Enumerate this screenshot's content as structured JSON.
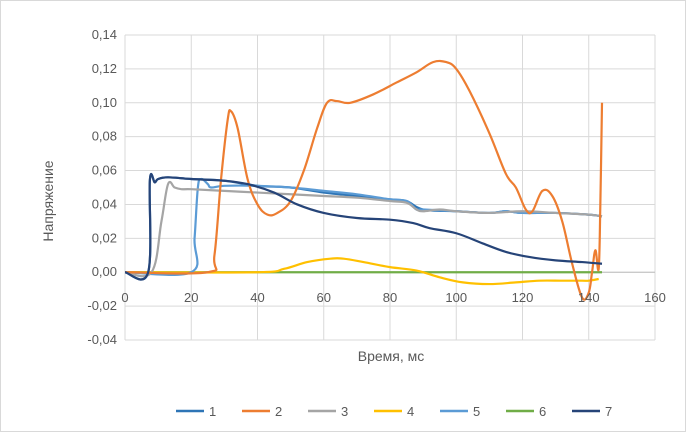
{
  "chart_data": {
    "type": "line",
    "xlabel": "Время, мс",
    "ylabel": "Напряжение",
    "xlim": [
      0,
      160
    ],
    "ylim": [
      -0.04,
      0.14
    ],
    "xticks": [
      0,
      20,
      40,
      60,
      80,
      100,
      120,
      140,
      160
    ],
    "yticks": [
      -0.04,
      -0.02,
      0.0,
      0.02,
      0.04,
      0.06,
      0.08,
      0.1,
      0.12,
      0.14
    ],
    "ytick_labels": [
      "-0,04",
      "-0,02",
      "0,00",
      "0,02",
      "0,04",
      "0,06",
      "0,08",
      "0,10",
      "0,12",
      "0,14"
    ],
    "xtick_labels": [
      "0",
      "20",
      "40",
      "60",
      "80",
      "100",
      "120",
      "140",
      "160"
    ],
    "grid": true,
    "legend_position": "bottom",
    "series": [
      {
        "name": "1",
        "color": "#2e75b6",
        "points": [
          [
            0,
            0
          ],
          [
            7,
            0
          ],
          [
            7.5,
            0.054
          ],
          [
            9,
            0.053
          ],
          [
            10,
            0.055
          ],
          [
            13,
            0.056
          ],
          [
            20,
            0.055
          ],
          [
            30,
            0.054
          ],
          [
            40,
            0.051
          ],
          [
            50,
            0.05
          ],
          [
            60,
            0.047
          ],
          [
            70,
            0.045
          ],
          [
            80,
            0.043
          ],
          [
            85,
            0.042
          ],
          [
            90,
            0.037
          ],
          [
            100,
            0.036
          ],
          [
            110,
            0.035
          ],
          [
            115,
            0.036
          ],
          [
            120,
            0.035
          ],
          [
            130,
            0.035
          ],
          [
            140,
            0.034
          ],
          [
            144,
            0.033
          ]
        ]
      },
      {
        "name": "2",
        "color": "#ed7d31",
        "points": [
          [
            0,
            0
          ],
          [
            25,
            0
          ],
          [
            27,
            0.01
          ],
          [
            29,
            0.055
          ],
          [
            31,
            0.09
          ],
          [
            32,
            0.095
          ],
          [
            34,
            0.085
          ],
          [
            37,
            0.055
          ],
          [
            40,
            0.04
          ],
          [
            43,
            0.034
          ],
          [
            46,
            0.035
          ],
          [
            50,
            0.042
          ],
          [
            54,
            0.06
          ],
          [
            58,
            0.085
          ],
          [
            61,
            0.1
          ],
          [
            64,
            0.101
          ],
          [
            68,
            0.1
          ],
          [
            75,
            0.105
          ],
          [
            82,
            0.112
          ],
          [
            88,
            0.118
          ],
          [
            93,
            0.124
          ],
          [
            97,
            0.124
          ],
          [
            100,
            0.12
          ],
          [
            104,
            0.107
          ],
          [
            110,
            0.082
          ],
          [
            115,
            0.058
          ],
          [
            118,
            0.05
          ],
          [
            121,
            0.037
          ],
          [
            123,
            0.036
          ],
          [
            126,
            0.048
          ],
          [
            129,
            0.045
          ],
          [
            132,
            0.03
          ],
          [
            135,
            0.005
          ],
          [
            138,
            -0.015
          ],
          [
            140,
            -0.012
          ],
          [
            141,
            0.0
          ],
          [
            142,
            0.013
          ],
          [
            143,
            0.002
          ],
          [
            143.5,
            0.04
          ],
          [
            144,
            0.1
          ]
        ]
      },
      {
        "name": "3",
        "color": "#a5a5a5",
        "points": [
          [
            0,
            0
          ],
          [
            8,
            0
          ],
          [
            11,
            0.03
          ],
          [
            13,
            0.052
          ],
          [
            15,
            0.05
          ],
          [
            17,
            0.049
          ],
          [
            20,
            0.049
          ],
          [
            30,
            0.048
          ],
          [
            40,
            0.047
          ],
          [
            50,
            0.046
          ],
          [
            60,
            0.045
          ],
          [
            70,
            0.044
          ],
          [
            80,
            0.042
          ],
          [
            85,
            0.041
          ],
          [
            88,
            0.037
          ],
          [
            90,
            0.036
          ],
          [
            95,
            0.037
          ],
          [
            100,
            0.036
          ],
          [
            110,
            0.035
          ],
          [
            120,
            0.036
          ],
          [
            130,
            0.035
          ],
          [
            140,
            0.034
          ],
          [
            144,
            0.033
          ]
        ]
      },
      {
        "name": "4",
        "color": "#ffc000",
        "points": [
          [
            0,
            0
          ],
          [
            40,
            0
          ],
          [
            48,
            0.002
          ],
          [
            55,
            0.006
          ],
          [
            62,
            0.008
          ],
          [
            66,
            0.008
          ],
          [
            72,
            0.006
          ],
          [
            80,
            0.003
          ],
          [
            88,
            0.001
          ],
          [
            95,
            -0.003
          ],
          [
            102,
            -0.006
          ],
          [
            110,
            -0.007
          ],
          [
            118,
            -0.006
          ],
          [
            125,
            -0.005
          ],
          [
            132,
            -0.005
          ],
          [
            138,
            -0.005
          ],
          [
            140,
            -0.005
          ],
          [
            143,
            -0.004
          ]
        ]
      },
      {
        "name": "5",
        "color": "#5b9bd5",
        "points": [
          [
            0,
            0
          ],
          [
            20,
            0
          ],
          [
            21,
            0.02
          ],
          [
            22,
            0.05
          ],
          [
            23,
            0.055
          ],
          [
            25,
            0.052
          ],
          [
            26,
            0.05
          ],
          [
            30,
            0.051
          ],
          [
            40,
            0.051
          ],
          [
            50,
            0.05
          ],
          [
            60,
            0.048
          ],
          [
            70,
            0.046
          ],
          [
            80,
            0.043
          ],
          [
            85,
            0.042
          ],
          [
            88,
            0.037
          ],
          [
            90,
            0.037
          ],
          [
            100,
            0.036
          ],
          [
            110,
            0.035
          ],
          [
            115,
            0.036
          ],
          [
            120,
            0.035
          ],
          [
            130,
            0.035
          ],
          [
            140,
            0.034
          ],
          [
            144,
            0.033
          ]
        ]
      },
      {
        "name": "6",
        "color": "#70ad47",
        "points": [
          [
            0,
            0
          ],
          [
            144,
            0
          ]
        ]
      },
      {
        "name": "7",
        "color": "#264478",
        "points": [
          [
            0,
            0
          ],
          [
            7,
            0
          ],
          [
            7.5,
            0.054
          ],
          [
            9,
            0.053
          ],
          [
            10,
            0.055
          ],
          [
            13,
            0.056
          ],
          [
            20,
            0.055
          ],
          [
            30,
            0.054
          ],
          [
            37,
            0.052
          ],
          [
            45,
            0.047
          ],
          [
            52,
            0.04
          ],
          [
            60,
            0.035
          ],
          [
            70,
            0.032
          ],
          [
            80,
            0.031
          ],
          [
            87,
            0.029
          ],
          [
            92,
            0.026
          ],
          [
            100,
            0.023
          ],
          [
            108,
            0.017
          ],
          [
            115,
            0.012
          ],
          [
            122,
            0.009
          ],
          [
            130,
            0.007
          ],
          [
            138,
            0.006
          ],
          [
            144,
            0.005
          ]
        ]
      }
    ]
  }
}
